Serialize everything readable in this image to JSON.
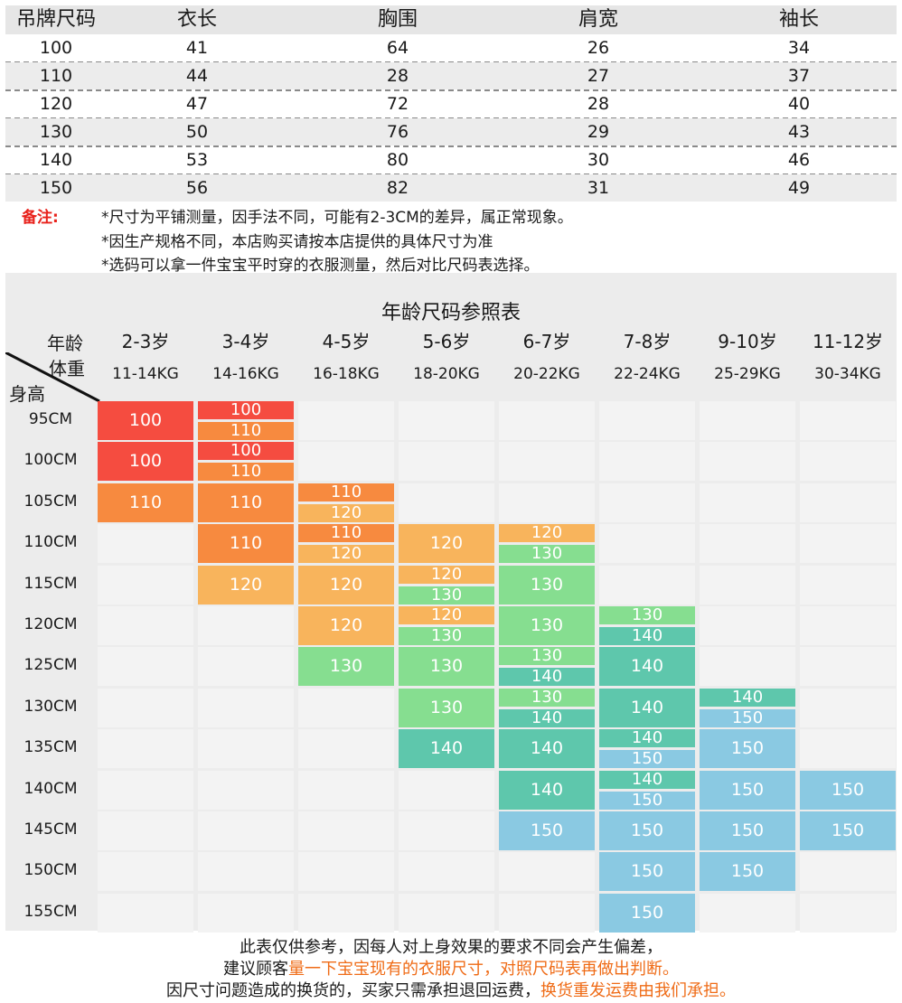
{
  "size_table": {
    "headers": [
      "吊牌尺码",
      "衣长",
      "胸围",
      "肩宽",
      "袖长"
    ],
    "rows": [
      [
        "100",
        "41",
        "64",
        "26",
        "34"
      ],
      [
        "110",
        "44",
        "28",
        "27",
        "37"
      ],
      [
        "120",
        "47",
        "72",
        "28",
        "40"
      ],
      [
        "130",
        "50",
        "76",
        "29",
        "43"
      ],
      [
        "140",
        "53",
        "80",
        "30",
        "46"
      ],
      [
        "150",
        "56",
        "82",
        "31",
        "49"
      ]
    ]
  },
  "notes": {
    "label": "备注:",
    "lines": [
      "*尺寸为平铺测量，因手法不同，可能有2-3CM的差异，属正常现象。",
      "*因生产规格不同，本店购买请按本店提供的具体尺寸为准",
      "*选码可以拿一件宝宝平时穿的衣服测量，然后对比尺码表选择。"
    ]
  },
  "chart": {
    "title": "年龄尺码参照表",
    "corner": {
      "age": "年龄",
      "weight": "体重",
      "height": "身高"
    },
    "ages": [
      "2-3岁",
      "3-4岁",
      "4-5岁",
      "5-6岁",
      "6-7岁",
      "7-8岁",
      "9-10岁",
      "11-12岁"
    ],
    "weights": [
      "11-14KG",
      "14-16KG",
      "16-18KG",
      "18-20KG",
      "20-22KG",
      "22-24KG",
      "25-29KG",
      "30-34KG"
    ],
    "heights": [
      "95CM",
      "100CM",
      "105CM",
      "110CM",
      "115CM",
      "120CM",
      "125CM",
      "130CM",
      "135CM",
      "140CM",
      "145CM",
      "150CM",
      "155CM"
    ],
    "size_colors": {
      "100": "#f54c40",
      "110": "#f78a3f",
      "120": "#f8b45c",
      "130": "#86de90",
      "140": "#5ec7ac",
      "150": "#8ac9e2"
    },
    "grid": [
      [
        [
          "100"
        ],
        [
          "100",
          "110"
        ],
        [],
        [],
        [],
        [],
        [],
        []
      ],
      [
        [
          "100"
        ],
        [
          "100",
          "110"
        ],
        [],
        [],
        [],
        [],
        [],
        []
      ],
      [
        [
          "110"
        ],
        [
          "110"
        ],
        [
          "110",
          "120"
        ],
        [],
        [],
        [],
        [],
        []
      ],
      [
        [],
        [
          "110"
        ],
        [
          "110",
          "120"
        ],
        [
          "120"
        ],
        [
          "120",
          "130"
        ],
        [],
        [],
        []
      ],
      [
        [],
        [
          "120"
        ],
        [
          "120"
        ],
        [
          "120",
          "130"
        ],
        [
          "130"
        ],
        [],
        [],
        []
      ],
      [
        [],
        [],
        [
          "120"
        ],
        [
          "120",
          "130"
        ],
        [
          "130"
        ],
        [
          "130",
          "140"
        ],
        [],
        []
      ],
      [
        [],
        [],
        [
          "130"
        ],
        [
          "130"
        ],
        [
          "130",
          "140"
        ],
        [
          "140"
        ],
        [],
        []
      ],
      [
        [],
        [],
        [],
        [
          "130"
        ],
        [
          "130",
          "140"
        ],
        [
          "140"
        ],
        [
          "140",
          "150"
        ],
        []
      ],
      [
        [],
        [],
        [],
        [
          "140"
        ],
        [
          "140"
        ],
        [
          "140",
          "150"
        ],
        [
          "150"
        ],
        []
      ],
      [
        [],
        [],
        [],
        [],
        [
          "140"
        ],
        [
          "140",
          "150"
        ],
        [
          "150"
        ],
        [
          "150"
        ]
      ],
      [
        [],
        [],
        [],
        [],
        [
          "150"
        ],
        [
          "150"
        ],
        [
          "150"
        ],
        [
          "150"
        ]
      ],
      [
        [],
        [],
        [],
        [],
        [],
        [
          "150"
        ],
        [
          "150"
        ],
        []
      ],
      [
        [],
        [],
        [],
        [],
        [],
        [
          "150"
        ],
        [],
        []
      ]
    ]
  },
  "footer": {
    "line1": "此表仅供参考，因每人对上身效果的要求不同会产生偏差，",
    "line2_plain": "建议顾客",
    "line2_highlight": "量一下宝宝现有的衣服尺寸，对照尺码表再做出判断。",
    "line3_plain": "因尺寸问题造成的换货的，买家只需承担退回运费，",
    "line3_highlight": "换货重发运费由我们承担。"
  }
}
